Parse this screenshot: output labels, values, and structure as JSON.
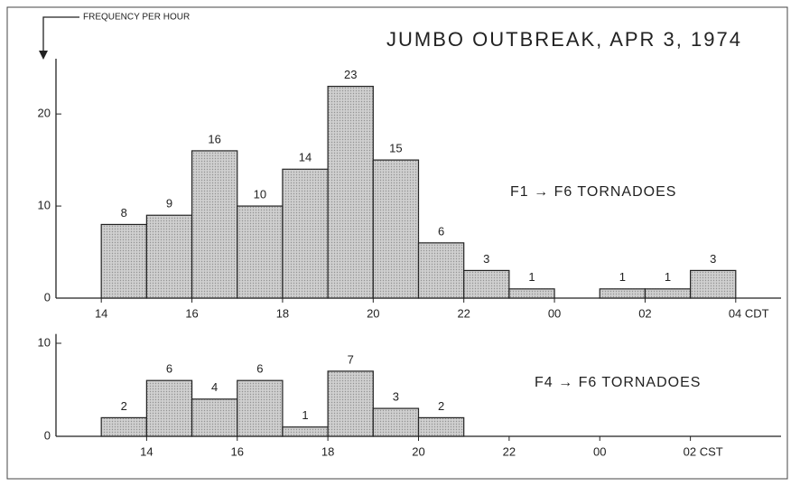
{
  "chart_data": [
    {
      "type": "histogram",
      "title": "JUMBO OUTBREAK, APR 3, 1974",
      "ylabel": "FREQUENCY PER HOUR",
      "annotation": "F1 → F6 TORNADOES",
      "bins": [
        14,
        15,
        16,
        17,
        18,
        19,
        20,
        21,
        22,
        23,
        24,
        25,
        26,
        27,
        28
      ],
      "values": [
        8,
        9,
        16,
        10,
        14,
        23,
        15,
        6,
        3,
        1,
        0,
        1,
        1,
        3
      ],
      "color": "#cfcfcf",
      "xlim": [
        13,
        29
      ],
      "ylim": [
        0,
        26
      ],
      "xticks": [
        14,
        16,
        18,
        20,
        22,
        {
          "value": 24,
          "label": "00"
        },
        {
          "value": 26,
          "label": "02"
        },
        {
          "value": 28,
          "label": "04 CDT"
        }
      ],
      "yticks": [
        0,
        10,
        20
      ]
    },
    {
      "type": "histogram",
      "annotation": "F4 → F6 TORNADOES",
      "bins": [
        13,
        14,
        15,
        16,
        17,
        18,
        19,
        20,
        21
      ],
      "values": [
        2,
        6,
        4,
        6,
        1,
        7,
        3,
        2
      ],
      "color": "#cfcfcf",
      "xlim": [
        12,
        28
      ],
      "ylim": [
        0,
        11
      ],
      "xticks": [
        14,
        16,
        18,
        20,
        22,
        {
          "value": 24,
          "label": "00"
        },
        {
          "value": 26,
          "label": "02 CST"
        }
      ],
      "yticks": [
        0,
        10
      ]
    }
  ]
}
